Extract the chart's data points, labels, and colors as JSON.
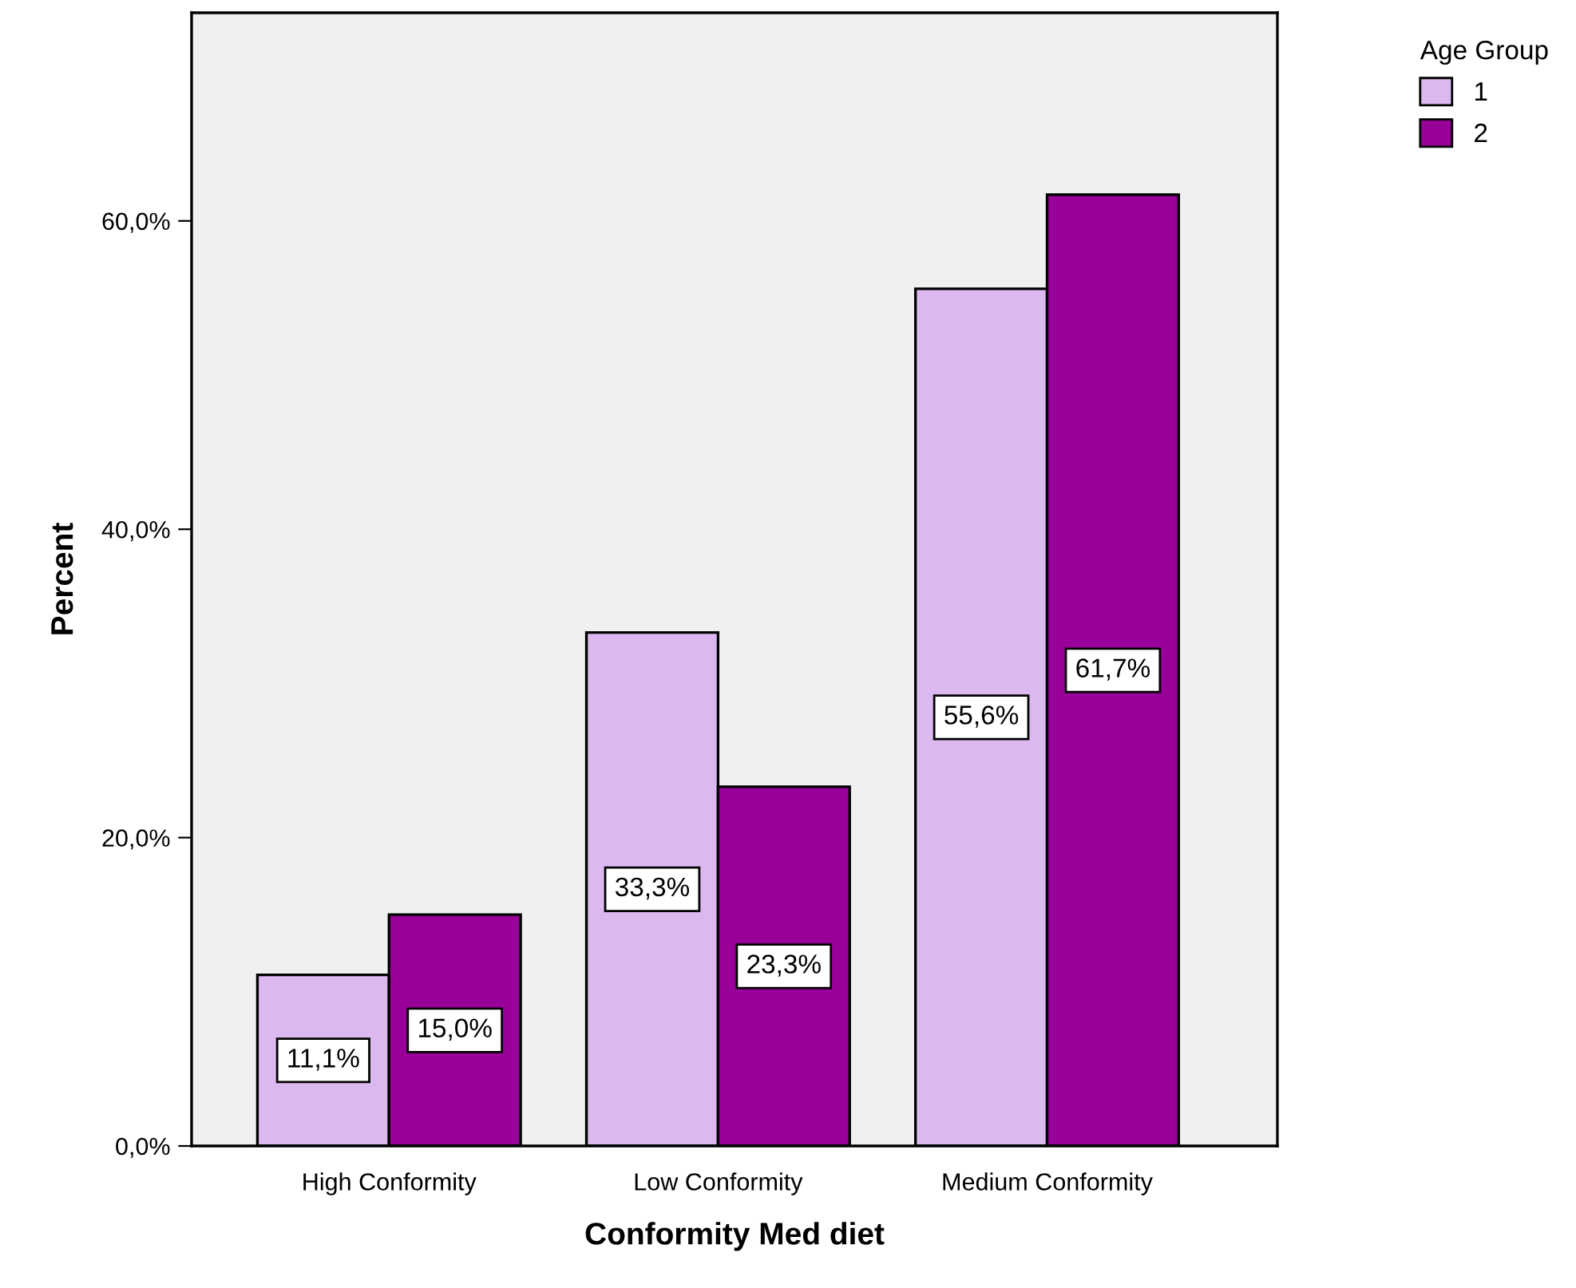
{
  "chart_data": {
    "type": "bar",
    "xlabel": "Conformity Med diet",
    "ylabel": "Percent",
    "legend_title": "Age Group",
    "legend": "top right",
    "categories": [
      "High Conformity",
      "Low Conformity",
      "Medium Conformity"
    ],
    "series": [
      {
        "name": "1",
        "color": "#dcb8f0",
        "values": [
          11.1,
          33.3,
          55.6
        ],
        "value_labels": [
          "11,1%",
          "33,3%",
          "55,6%"
        ]
      },
      {
        "name": "2",
        "color": "#990099",
        "values": [
          15.0,
          23.3,
          61.7
        ],
        "value_labels": [
          "15,0%",
          "23,3%",
          "61,7%"
        ]
      }
    ],
    "ylim": [
      0,
      73.5
    ],
    "yticks": [
      {
        "value": 0,
        "label": "0,0%"
      },
      {
        "value": 20,
        "label": "20,0%"
      },
      {
        "value": 40,
        "label": "40,0%"
      },
      {
        "value": 60,
        "label": "60,0%"
      }
    ],
    "grid": false
  }
}
